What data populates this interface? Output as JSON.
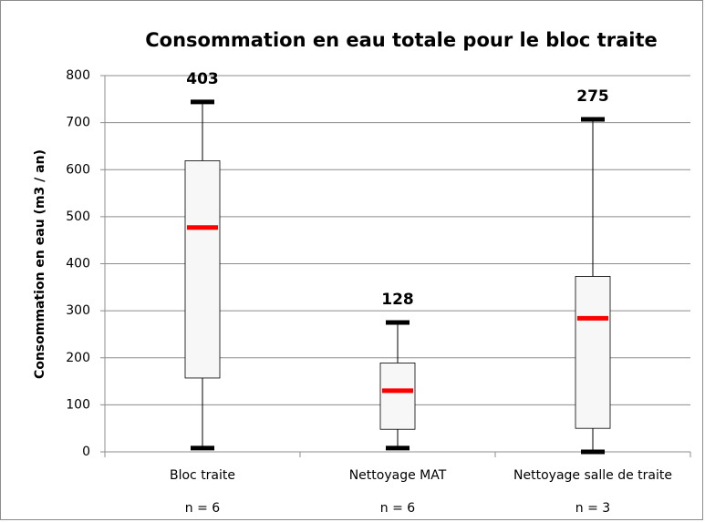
{
  "chart_data": {
    "type": "box",
    "title": "Consommation en eau totale pour le bloc traite",
    "y_label": "Consommation  en eau (m3 / an)",
    "categories": [
      "Bloc traite",
      "Nettoyage MAT",
      "Nettoyage salle de traite"
    ],
    "sample_labels": [
      "n = 6",
      "n = 6",
      "n = 3"
    ],
    "min": [
      8,
      8,
      0
    ],
    "q1": [
      157,
      48,
      50
    ],
    "median": [
      477,
      130,
      284
    ],
    "q3": [
      619,
      189,
      373
    ],
    "max": [
      744,
      275,
      707
    ],
    "values": [
      403,
      128,
      275
    ],
    "box_color": "#f7f7f7",
    "median_color": "#ff0000",
    "ylim": [
      0,
      800
    ],
    "yticks": [
      0,
      100,
      200,
      300,
      400,
      500,
      600,
      700,
      800
    ],
    "grid": true
  }
}
